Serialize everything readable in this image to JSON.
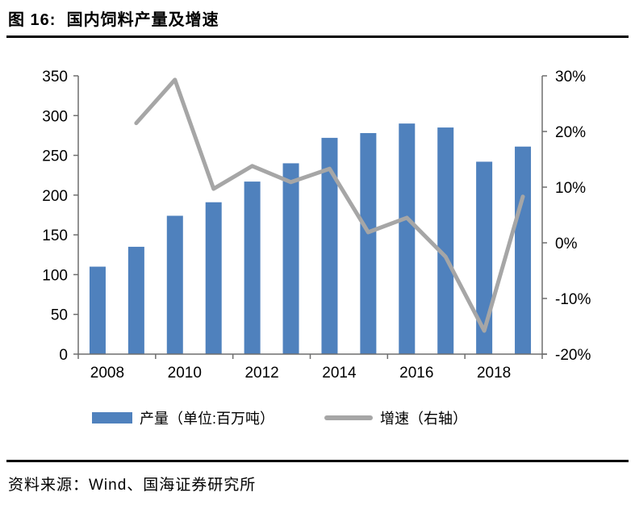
{
  "title": "图 16:  国内饲料产量及增速",
  "source": "资料来源：Wind、国海证券研究所",
  "legend": {
    "bars": "产量（单位:百万吨）",
    "line": "增速（右轴）"
  },
  "colors": {
    "bar": "#4F81BD",
    "line": "#A6A6A6",
    "axis": "#6E6E6E",
    "text": "#000000"
  },
  "chart_data": {
    "type": "bar",
    "subtype": "bar+line combo, dual axis",
    "title": "国内饲料产量及增速",
    "categories": [
      "2008",
      "2009",
      "2010",
      "2011",
      "2012",
      "2013",
      "2014",
      "2015",
      "2016",
      "2017",
      "2018",
      "2019"
    ],
    "series": [
      {
        "name": "产量（单位:百万吨）",
        "type": "bar",
        "axis": "left",
        "color": "#4F81BD",
        "values": [
          110,
          135,
          174,
          191,
          217,
          240,
          272,
          278,
          290,
          285,
          242,
          261
        ]
      },
      {
        "name": "增速（右轴）",
        "type": "line",
        "axis": "right",
        "color": "#A6A6A6",
        "values": [
          null,
          21.5,
          29.3,
          9.7,
          13.8,
          10.9,
          13.3,
          1.9,
          4.5,
          -2.5,
          -15.8,
          8.3
        ]
      }
    ],
    "left_axis": {
      "min": 0,
      "max": 350,
      "step": 50,
      "tick_labels": [
        "0",
        "50",
        "100",
        "150",
        "200",
        "250",
        "300",
        "350"
      ]
    },
    "right_axis": {
      "min": -20,
      "max": 30,
      "step": 10,
      "tick_labels": [
        "30%",
        "20%",
        "10%",
        "0%",
        "-10%",
        "-20%"
      ],
      "format": "percent"
    },
    "x_axis": {
      "labeled_ticks": [
        "2008",
        "2010",
        "2012",
        "2014",
        "2016",
        "2018"
      ],
      "label_every": 2
    },
    "grid": false,
    "legend_position": "bottom"
  }
}
